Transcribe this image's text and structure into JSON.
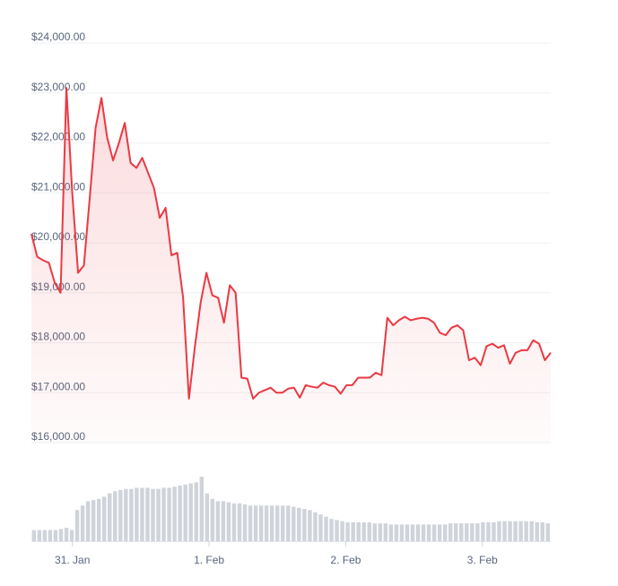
{
  "chart_data": {
    "type": "line",
    "title": "",
    "xlabel": "",
    "ylabel": "",
    "ylim": [
      16000,
      24000
    ],
    "y_ticks": [
      {
        "value": 24000,
        "label": "$24,000.00"
      },
      {
        "value": 23000,
        "label": "$23,000.00"
      },
      {
        "value": 22000,
        "label": "$22,000.00"
      },
      {
        "value": 21000,
        "label": "$21,000.00"
      },
      {
        "value": 20000,
        "label": "$20,000.00"
      },
      {
        "value": 19000,
        "label": "$19,000.00"
      },
      {
        "value": 18000,
        "label": "$18,000.00"
      },
      {
        "value": 17000,
        "label": "$17,000.00"
      },
      {
        "value": 16000,
        "label": "$16,000.00"
      }
    ],
    "x_ticks": [
      {
        "value": 31.0,
        "label": "31. Jan"
      },
      {
        "value": 32.0,
        "label": "1. Feb"
      },
      {
        "value": 33.0,
        "label": "2. Feb"
      },
      {
        "value": 34.0,
        "label": "3. Feb"
      }
    ],
    "xlim": [
      30.7,
      34.5
    ],
    "grid": true,
    "colors": {
      "line": "#ea3943",
      "area": "#ea3943",
      "volume": "#cfd3da",
      "grid": "#eef0f3",
      "tick_text": "#58667e"
    },
    "series": [
      {
        "values": [
          20180,
          19720,
          19650,
          19600,
          19200,
          19000,
          23100,
          21000,
          19400,
          19550,
          20900,
          22300,
          22900,
          22100,
          21650,
          22000,
          22400,
          21600,
          21500,
          21700,
          21400,
          21100,
          20500,
          20700,
          19750,
          19800,
          18900,
          16880,
          17900,
          18800,
          19400,
          18950,
          18900,
          18400,
          19150,
          19000,
          17300,
          17280,
          16880,
          17000,
          17050,
          17100,
          17000,
          17000,
          17080,
          17100,
          16900,
          17150,
          17120,
          17100,
          17200,
          17150,
          17120,
          16980,
          17150,
          17150,
          17300,
          17300,
          17300,
          17400,
          17350,
          18500,
          18350,
          18450,
          18520,
          18450,
          18480,
          18500,
          18480,
          18400,
          18200,
          18150,
          18300,
          18350,
          18250,
          17650,
          17700,
          17550,
          17930,
          17980,
          17900,
          17950,
          17580,
          17800,
          17850,
          17850,
          18050,
          17980,
          17650,
          17800
        ]
      }
    ],
    "volume": [
      10,
      10,
      10,
      10,
      10,
      11,
      12,
      10,
      28,
      32,
      36,
      37,
      38,
      40,
      43,
      45,
      46,
      47,
      47,
      48,
      48,
      48,
      47,
      47,
      48,
      48,
      49,
      50,
      51,
      52,
      53,
      58,
      43,
      38,
      36,
      36,
      35,
      34,
      34,
      33,
      32,
      32,
      32,
      32,
      32,
      32,
      32,
      32,
      31,
      30,
      29,
      28,
      26,
      24,
      22,
      20,
      19,
      18,
      17,
      17,
      17,
      17,
      17,
      16,
      16,
      16,
      15,
      15,
      15,
      15,
      15,
      15,
      15,
      15,
      15,
      15,
      15,
      16,
      16,
      16,
      16,
      16,
      16,
      17,
      17,
      17,
      18,
      18,
      18,
      18,
      18,
      18,
      18,
      17,
      17,
      16
    ]
  }
}
